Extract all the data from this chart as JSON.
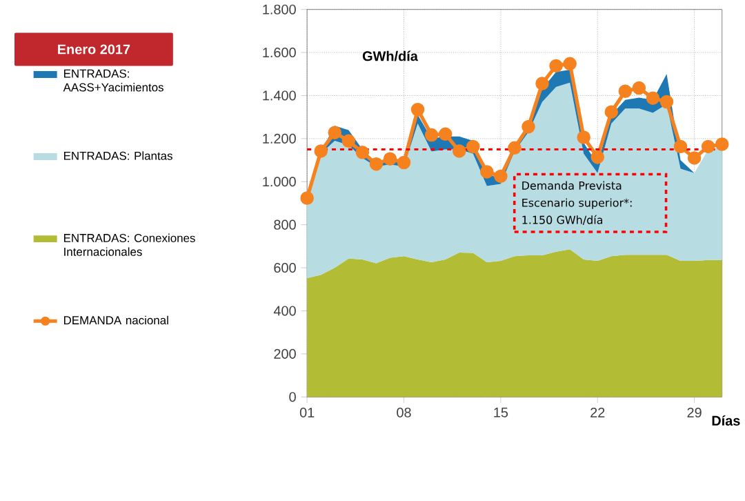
{
  "chart_data": {
    "type": "area",
    "title": "Enero 2017",
    "ylabel": "GWh/día",
    "xlabel": "Días",
    "x": [
      1,
      2,
      3,
      4,
      5,
      6,
      7,
      8,
      9,
      10,
      11,
      12,
      13,
      14,
      15,
      16,
      17,
      18,
      19,
      20,
      21,
      22,
      23,
      24,
      25,
      26,
      27,
      28,
      29,
      30,
      31
    ],
    "stacked": true,
    "series": [
      {
        "name": "ENTRADAS: Conexiones Internacionales",
        "color": "#b3bc35",
        "values": [
          552,
          567,
          600,
          643,
          639,
          621,
          647,
          654,
          639,
          626,
          639,
          671,
          669,
          626,
          632,
          654,
          658,
          658,
          675,
          686,
          639,
          632,
          654,
          660,
          660,
          660,
          660,
          632,
          632,
          636,
          636
        ]
      },
      {
        "name": "ENTRADAS:  Plantas",
        "color": "#b7dde3",
        "values": [
          372,
          563,
          590,
          527,
          471,
          449,
          433,
          416,
          631,
          514,
          511,
          479,
          461,
          354,
          358,
          486,
          572,
          712,
          765,
          774,
          491,
          408,
          616,
          680,
          680,
          660,
          700,
          428,
          408,
          514,
          524
        ]
      },
      {
        "name": "ENTRADAS: AASS+Yacimientos",
        "color": "#1d78b4",
        "values": [
          0,
          10,
          70,
          70,
          40,
          20,
          20,
          20,
          40,
          60,
          60,
          60,
          60,
          60,
          20,
          10,
          20,
          60,
          70,
          60,
          50,
          40,
          40,
          40,
          50,
          60,
          140,
          40,
          0,
          0,
          0
        ]
      },
      {
        "name": "DEMANDA nacional",
        "type": "line",
        "color": "#f5821f",
        "marker": "circle",
        "values": [
          924,
          1142,
          1228,
          1189,
          1136,
          1082,
          1106,
          1089,
          1335,
          1217,
          1221,
          1142,
          1163,
          1046,
          1025,
          1157,
          1255,
          1456,
          1538,
          1548,
          1206,
          1114,
          1324,
          1420,
          1435,
          1388,
          1371,
          1163,
          1110,
          1163,
          1174
        ]
      }
    ],
    "xlim": [
      1,
      31
    ],
    "xticks": [
      {
        "value": 1,
        "label": "01"
      },
      {
        "value": 8,
        "label": "08"
      },
      {
        "value": 15,
        "label": "15"
      },
      {
        "value": 22,
        "label": "22"
      },
      {
        "value": 29,
        "label": "29"
      }
    ],
    "ylim": [
      0,
      1800
    ],
    "yticks": [
      0,
      200,
      400,
      600,
      800,
      {
        "value": 1000,
        "label": "1.000"
      },
      {
        "value": 1200,
        "label": "1.200"
      },
      {
        "value": 1400,
        "label": "1.400"
      },
      {
        "value": 1600,
        "label": "1.600"
      },
      {
        "value": 1800,
        "label": "1.800"
      }
    ],
    "ref_lines": [
      {
        "axis": "y",
        "value": 1150,
        "label": "Demanda Prevista Escenario superior*: 1.150 GWh/día",
        "color": "#ff0000",
        "line_style": "dashed"
      }
    ],
    "grid": true,
    "legend": "left"
  }
}
